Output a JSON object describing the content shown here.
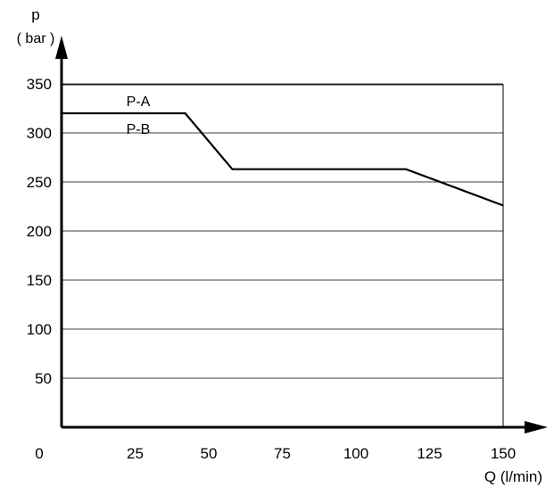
{
  "chart_data": {
    "type": "line",
    "title": "",
    "xlabel": "Q (l/min)",
    "ylabel": "p",
    "ylabel_unit": "( bar )",
    "xlim": [
      0,
      150
    ],
    "ylim": [
      0,
      350
    ],
    "x_ticks": [
      0,
      25,
      50,
      75,
      100,
      125,
      150
    ],
    "y_ticks": [
      50,
      100,
      150,
      200,
      250,
      300,
      350
    ],
    "grid": "horizontal",
    "line_color": "#000000",
    "series": [
      {
        "name": "P-A",
        "x": [
          0,
          42,
          58,
          117,
          150
        ],
        "y": [
          320,
          320,
          263,
          263,
          226
        ]
      }
    ],
    "curve_labels": [
      "P-A",
      "P-B"
    ]
  }
}
